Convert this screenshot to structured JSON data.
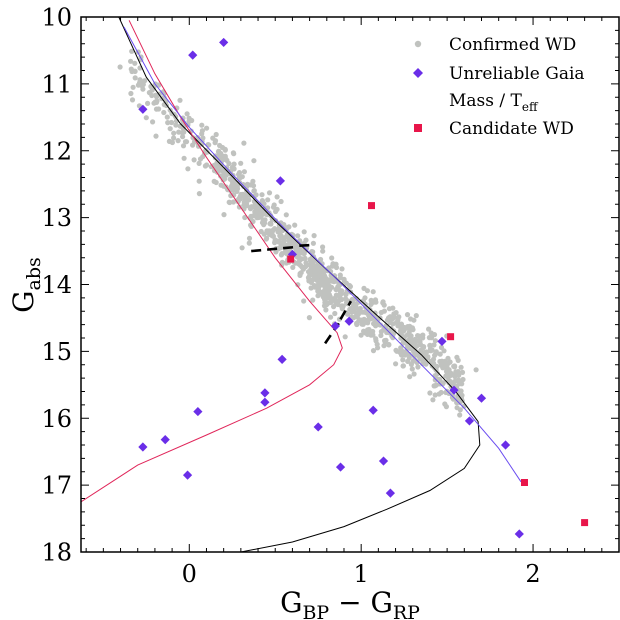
{
  "chart_data": {
    "type": "scatter",
    "xlim": [
      -0.63,
      2.5
    ],
    "ylim": [
      18,
      10
    ],
    "y_inverted": true,
    "grid": false,
    "legend_placement": "top-right",
    "xlabel": {
      "main": "G",
      "sub1": "BP",
      "op": " − G",
      "sub2": "RP"
    },
    "ylabel": {
      "main": "G",
      "sub": "abs"
    },
    "x_ticks": [
      0,
      1,
      2
    ],
    "x_tick_labels": [
      "0",
      "1",
      "2"
    ],
    "y_ticks": [
      10,
      11,
      12,
      13,
      14,
      15,
      16,
      17,
      18
    ],
    "y_tick_labels": [
      "10",
      "11",
      "12",
      "13",
      "14",
      "15",
      "16",
      "17",
      "18"
    ],
    "legend": [
      {
        "label": "Confirmed WD",
        "marker": "circle",
        "color": "#c0c2bf"
      },
      {
        "label": "Unreliable Gaia",
        "label2_main": "Mass / T",
        "label2_sub": "eff",
        "marker": "diamond",
        "color": "#6a2ee8"
      },
      {
        "label": "Candidate WD",
        "marker": "square",
        "color": "#e8164a"
      }
    ],
    "colors": {
      "confirmed": "#c0c2bf",
      "unreliable": "#6a2ee8",
      "candidate": "#e8164a",
      "track_black": "#000000",
      "track_red": "#e0265a",
      "track_purple": "#6a4cf0"
    },
    "confirmed_wd_band": {
      "description_of_trend": "cloud of confirmed WDs along the cooling sequence",
      "center_line": [
        [
          -0.3,
          10.9
        ],
        [
          -0.1,
          11.5
        ],
        [
          0.1,
          12.0
        ],
        [
          0.3,
          12.6
        ],
        [
          0.5,
          13.2
        ],
        [
          0.7,
          13.7
        ],
        [
          0.9,
          14.2
        ],
        [
          1.1,
          14.6
        ],
        [
          1.3,
          14.9
        ],
        [
          1.5,
          15.3
        ],
        [
          1.6,
          15.6
        ]
      ],
      "count": 1100,
      "scatter_spread": 0.18
    },
    "unreliable_points": [
      [
        0.2,
        10.38
      ],
      [
        0.02,
        10.57
      ],
      [
        -0.27,
        11.38
      ],
      [
        0.53,
        12.45
      ],
      [
        0.6,
        13.55
      ],
      [
        0.93,
        14.55
      ],
      [
        0.85,
        14.62
      ],
      [
        1.47,
        14.85
      ],
      [
        0.54,
        15.12
      ],
      [
        1.54,
        15.58
      ],
      [
        0.44,
        15.62
      ],
      [
        1.7,
        15.7
      ],
      [
        0.44,
        15.76
      ],
      [
        0.05,
        15.9
      ],
      [
        1.07,
        15.88
      ],
      [
        1.63,
        16.04
      ],
      [
        0.75,
        16.13
      ],
      [
        -0.14,
        16.32
      ],
      [
        -0.27,
        16.43
      ],
      [
        1.84,
        16.4
      ],
      [
        1.13,
        16.64
      ],
      [
        0.88,
        16.73
      ],
      [
        -0.01,
        16.85
      ],
      [
        1.17,
        17.12
      ],
      [
        1.92,
        17.73
      ]
    ],
    "candidate_points": [
      [
        1.06,
        12.82
      ],
      [
        0.59,
        13.62
      ],
      [
        1.52,
        14.78
      ],
      [
        1.95,
        16.96
      ],
      [
        2.3,
        17.56
      ]
    ],
    "tracks": [
      {
        "color": "#000000",
        "points": [
          [
            -0.41,
            10.0
          ],
          [
            -0.25,
            10.9
          ],
          [
            -0.05,
            11.6
          ],
          [
            0.2,
            12.25
          ],
          [
            0.5,
            13.05
          ],
          [
            0.8,
            13.78
          ],
          [
            1.1,
            14.48
          ],
          [
            1.35,
            15.05
          ],
          [
            1.55,
            15.6
          ],
          [
            1.68,
            16.05
          ],
          [
            1.69,
            16.4
          ],
          [
            1.6,
            16.75
          ],
          [
            1.4,
            17.08
          ],
          [
            1.15,
            17.36
          ],
          [
            0.9,
            17.62
          ],
          [
            0.6,
            17.85
          ],
          [
            0.3,
            18.0
          ]
        ]
      },
      {
        "color": "#e0265a",
        "points": [
          [
            -0.35,
            10.05
          ],
          [
            -0.2,
            10.85
          ],
          [
            -0.05,
            11.5
          ],
          [
            0.1,
            12.1
          ],
          [
            0.3,
            12.85
          ],
          [
            0.5,
            13.6
          ],
          [
            0.7,
            14.25
          ],
          [
            0.86,
            14.72
          ],
          [
            0.89,
            14.95
          ],
          [
            0.84,
            15.2
          ],
          [
            0.7,
            15.5
          ],
          [
            0.45,
            15.85
          ],
          [
            0.1,
            16.25
          ],
          [
            -0.3,
            16.7
          ],
          [
            -0.63,
            17.25
          ]
        ]
      },
      {
        "color": "#6a4cf0",
        "points": [
          [
            -0.38,
            10.15
          ],
          [
            -0.2,
            11.0
          ],
          [
            0.0,
            11.65
          ],
          [
            0.25,
            12.35
          ],
          [
            0.55,
            13.15
          ],
          [
            0.85,
            13.9
          ],
          [
            1.1,
            14.55
          ],
          [
            1.35,
            15.2
          ],
          [
            1.6,
            15.85
          ],
          [
            1.8,
            16.45
          ],
          [
            1.93,
            16.95
          ]
        ]
      }
    ],
    "dashed_segments": [
      [
        [
          0.36,
          13.5
        ],
        [
          0.62,
          13.44
        ]
      ],
      [
        [
          0.64,
          13.42
        ],
        [
          0.72,
          13.41
        ]
      ],
      [
        [
          0.79,
          14.88
        ],
        [
          0.87,
          14.58
        ]
      ],
      [
        [
          0.88,
          14.52
        ],
        [
          0.94,
          14.25
        ]
      ]
    ]
  }
}
